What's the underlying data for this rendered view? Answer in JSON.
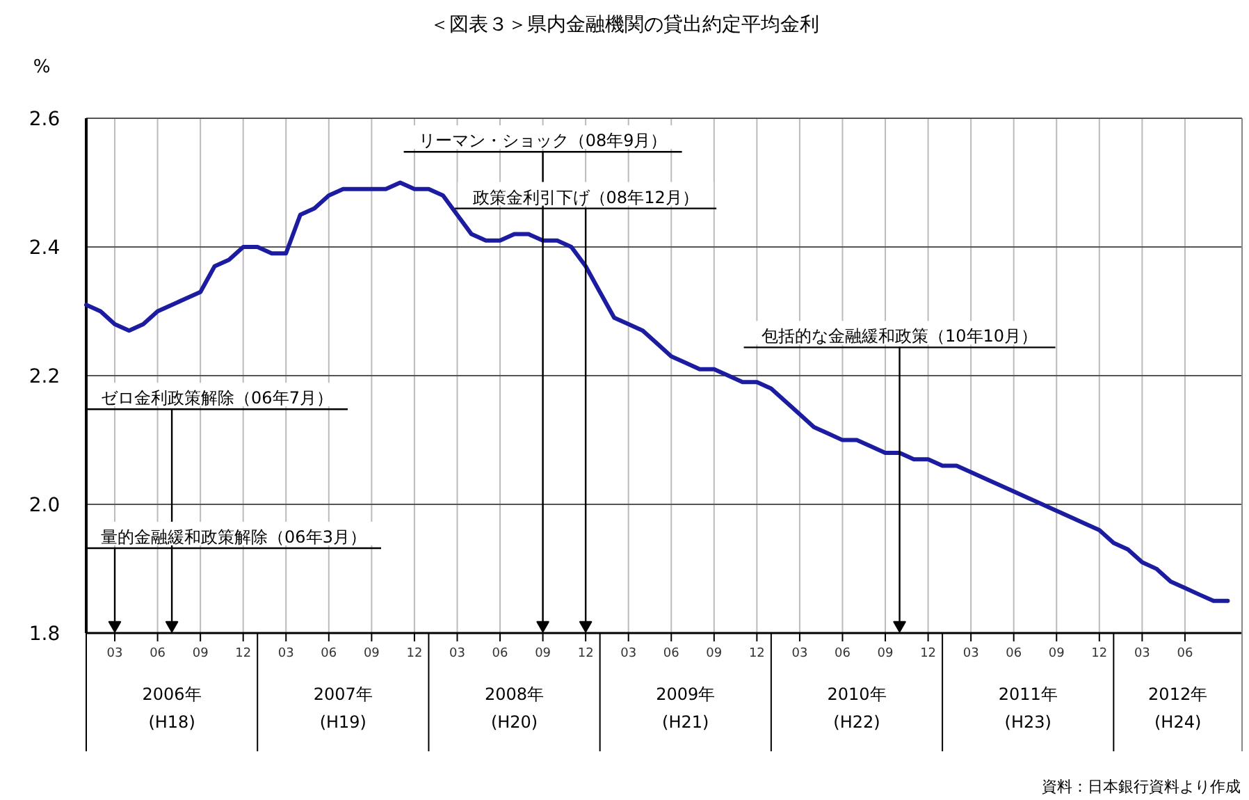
{
  "chart_data": {
    "type": "line",
    "title": "＜図表３＞県内金融機関の貸出約定平均金利",
    "ylabel": "%",
    "x": [
      "2006-01",
      "2006-02",
      "2006-03",
      "2006-04",
      "2006-05",
      "2006-06",
      "2006-07",
      "2006-08",
      "2006-09",
      "2006-10",
      "2006-11",
      "2006-12",
      "2007-01",
      "2007-02",
      "2007-03",
      "2007-04",
      "2007-05",
      "2007-06",
      "2007-07",
      "2007-08",
      "2007-09",
      "2007-10",
      "2007-11",
      "2007-12",
      "2008-01",
      "2008-02",
      "2008-03",
      "2008-04",
      "2008-05",
      "2008-06",
      "2008-07",
      "2008-08",
      "2008-09",
      "2008-10",
      "2008-11",
      "2008-12",
      "2009-01",
      "2009-02",
      "2009-03",
      "2009-04",
      "2009-05",
      "2009-06",
      "2009-07",
      "2009-08",
      "2009-09",
      "2009-10",
      "2009-11",
      "2009-12",
      "2010-01",
      "2010-02",
      "2010-03",
      "2010-04",
      "2010-05",
      "2010-06",
      "2010-07",
      "2010-08",
      "2010-09",
      "2010-10",
      "2010-11",
      "2010-12",
      "2011-01",
      "2011-02",
      "2011-03",
      "2011-04",
      "2011-05",
      "2011-06",
      "2011-07",
      "2011-08",
      "2011-09",
      "2011-10",
      "2011-11",
      "2011-12",
      "2012-01",
      "2012-02",
      "2012-03",
      "2012-04",
      "2012-05",
      "2012-06",
      "2012-07",
      "2012-08",
      "2012-09"
    ],
    "series": [
      {
        "color": "#1c1ca0",
        "values": [
          2.31,
          2.3,
          2.28,
          2.27,
          2.28,
          2.3,
          2.31,
          2.32,
          2.33,
          2.37,
          2.38,
          2.4,
          2.4,
          2.39,
          2.39,
          2.45,
          2.46,
          2.48,
          2.49,
          2.49,
          2.49,
          2.49,
          2.5,
          2.49,
          2.49,
          2.48,
          2.45,
          2.42,
          2.41,
          2.41,
          2.42,
          2.42,
          2.41,
          2.41,
          2.4,
          2.37,
          2.33,
          2.29,
          2.28,
          2.27,
          2.25,
          2.23,
          2.22,
          2.21,
          2.21,
          2.2,
          2.19,
          2.19,
          2.18,
          2.16,
          2.14,
          2.12,
          2.11,
          2.1,
          2.1,
          2.09,
          2.08,
          2.08,
          2.07,
          2.07,
          2.06,
          2.06,
          2.05,
          2.04,
          2.03,
          2.02,
          2.01,
          2.0,
          1.99,
          1.98,
          1.97,
          1.96,
          1.94,
          1.93,
          1.91,
          1.9,
          1.88,
          1.87,
          1.86,
          1.85,
          1.85
        ]
      }
    ],
    "xlim": [
      "2006-01",
      "2012-10"
    ],
    "xticks": [
      {
        "value": "2006-03",
        "label": "03"
      },
      {
        "value": "2006-06",
        "label": "06"
      },
      {
        "value": "2006-09",
        "label": "09"
      },
      {
        "value": "2006-12",
        "label": "12"
      },
      {
        "value": "2007-03",
        "label": "03"
      },
      {
        "value": "2007-06",
        "label": "06"
      },
      {
        "value": "2007-09",
        "label": "09"
      },
      {
        "value": "2007-12",
        "label": "12"
      },
      {
        "value": "2008-03",
        "label": "03"
      },
      {
        "value": "2008-06",
        "label": "06"
      },
      {
        "value": "2008-09",
        "label": "09"
      },
      {
        "value": "2008-12",
        "label": "12"
      },
      {
        "value": "2009-03",
        "label": "03"
      },
      {
        "value": "2009-06",
        "label": "06"
      },
      {
        "value": "2009-09",
        "label": "09"
      },
      {
        "value": "2009-12",
        "label": "12"
      },
      {
        "value": "2010-03",
        "label": "03"
      },
      {
        "value": "2010-06",
        "label": "06"
      },
      {
        "value": "2010-09",
        "label": "09"
      },
      {
        "value": "2010-12",
        "label": "12"
      },
      {
        "value": "2011-03",
        "label": "03"
      },
      {
        "value": "2011-06",
        "label": "06"
      },
      {
        "value": "2011-09",
        "label": "09"
      },
      {
        "value": "2011-12",
        "label": "12"
      },
      {
        "value": "2012-03",
        "label": "03"
      },
      {
        "value": "2012-06",
        "label": "06"
      }
    ],
    "ylim": [
      1.8,
      2.6
    ],
    "yticks": [
      {
        "value": 1.8,
        "label": "1.8"
      },
      {
        "value": 2.0,
        "label": "2.0"
      },
      {
        "value": 2.2,
        "label": "2.2"
      },
      {
        "value": 2.4,
        "label": "2.4"
      },
      {
        "value": 2.6,
        "label": "2.6"
      }
    ],
    "grid": true,
    "ref_lines": [
      {
        "axis": "x",
        "value": "2008-09",
        "label": "リーマン・ショック（08年9月）",
        "color": "#000000"
      },
      {
        "axis": "x",
        "value": "2008-12",
        "label": "政策金利引下げ（08年12月）",
        "color": "#000000"
      },
      {
        "axis": "x",
        "value": "2010-10",
        "label": "包括的な金融緩和政策（10年10月）",
        "color": "#000000"
      },
      {
        "axis": "x",
        "value": "2006-07",
        "label": "ゼロ金利政策解除（06年7月）",
        "color": "#000000"
      },
      {
        "axis": "x",
        "value": "2006-03",
        "label": "量的金融緩和政策解除（06年3月）",
        "color": "#000000"
      }
    ],
    "annotations": [
      "2006年",
      "(H18)",
      "2007年",
      "(H19)",
      "2008年",
      "(H20)",
      "2009年",
      "(H21)",
      "2010年",
      "(H22)",
      "2011年",
      "(H23)",
      "2012年",
      "(H24)",
      "資料：日本銀行資料より作成"
    ]
  }
}
